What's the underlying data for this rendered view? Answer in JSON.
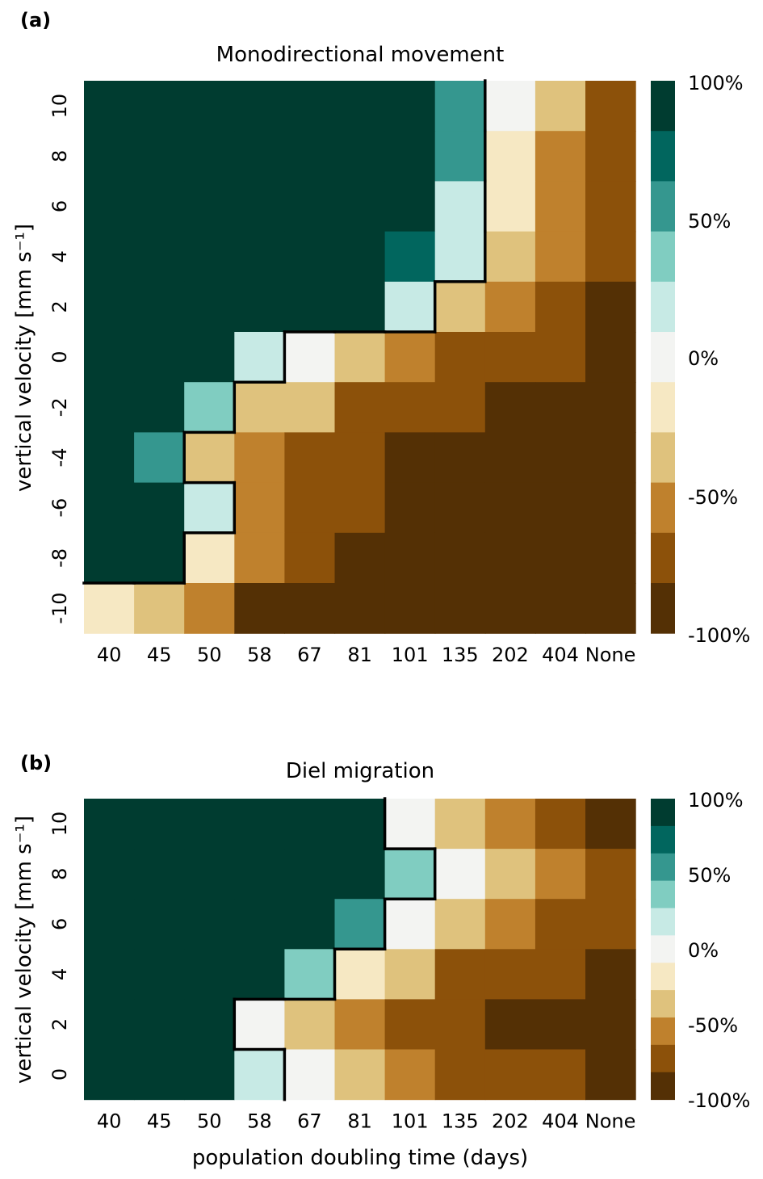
{
  "chart_data": [
    {
      "type": "heatmap",
      "panel_label": "(a)",
      "title": "Monodirectional movement",
      "xlabel": "",
      "ylabel": "vertical velocity [mm s⁻¹]",
      "x_categories": [
        "40",
        "45",
        "50",
        "58",
        "67",
        "81",
        "101",
        "135",
        "202",
        "404",
        "None"
      ],
      "y_categories": [
        "10",
        "8",
        "6",
        "4",
        "2",
        "0",
        "-2",
        "-4",
        "-6",
        "-8",
        "-10"
      ],
      "value_units": "percent change",
      "values_percent": [
        [
          100,
          100,
          100,
          100,
          100,
          100,
          100,
          50,
          0,
          -40,
          -70
        ],
        [
          100,
          100,
          100,
          100,
          100,
          100,
          100,
          50,
          -20,
          -55,
          -70
        ],
        [
          100,
          100,
          100,
          100,
          100,
          100,
          100,
          15,
          -20,
          -55,
          -70
        ],
        [
          100,
          100,
          100,
          100,
          100,
          100,
          75,
          15,
          -40,
          -55,
          -70
        ],
        [
          100,
          100,
          100,
          100,
          100,
          100,
          15,
          -40,
          -55,
          -70,
          -90
        ],
        [
          100,
          100,
          100,
          15,
          0,
          -40,
          -55,
          -70,
          -70,
          -70,
          -90
        ],
        [
          100,
          100,
          35,
          -40,
          -40,
          -70,
          -70,
          -70,
          -90,
          -90,
          -90
        ],
        [
          100,
          50,
          -40,
          -55,
          -70,
          -70,
          -90,
          -90,
          -90,
          -90,
          -90
        ],
        [
          100,
          100,
          15,
          -55,
          -70,
          -70,
          -90,
          -90,
          -90,
          -90,
          -90
        ],
        [
          100,
          100,
          -20,
          -55,
          -70,
          -90,
          -90,
          -90,
          -90,
          -90,
          -90
        ],
        [
          -20,
          -40,
          -55,
          -90,
          -90,
          -90,
          -90,
          -90,
          -90,
          -90,
          -90
        ]
      ],
      "boundary_note": "black line separates positive from non-positive change",
      "colorbar": {
        "range_percent": [
          -100,
          100
        ],
        "bins": 11,
        "tick_labels": [
          "100%",
          "50%",
          "0%",
          "-50%",
          "-100%"
        ]
      }
    },
    {
      "type": "heatmap",
      "panel_label": "(b)",
      "title": "Diel migration",
      "xlabel": "population doubling time (days)",
      "ylabel": "vertical velocity [mm s⁻¹]",
      "x_categories": [
        "40",
        "45",
        "50",
        "58",
        "67",
        "81",
        "101",
        "135",
        "202",
        "404",
        "None"
      ],
      "y_categories": [
        "10",
        "8",
        "6",
        "4",
        "2",
        "0"
      ],
      "value_units": "percent change",
      "values_percent": [
        [
          100,
          100,
          100,
          100,
          100,
          100,
          0,
          -40,
          -55,
          -70,
          -90
        ],
        [
          100,
          100,
          100,
          100,
          100,
          100,
          35,
          0,
          -40,
          -55,
          -70
        ],
        [
          100,
          100,
          100,
          100,
          100,
          50,
          0,
          -40,
          -55,
          -70,
          -70
        ],
        [
          100,
          100,
          100,
          100,
          35,
          -20,
          -40,
          -70,
          -70,
          -70,
          -90
        ],
        [
          100,
          100,
          100,
          0,
          -40,
          -55,
          -70,
          -70,
          -90,
          -90,
          -90
        ],
        [
          100,
          100,
          100,
          15,
          0,
          -40,
          -55,
          -70,
          -70,
          -70,
          -90
        ]
      ],
      "boundary_note": "black line separates positive from non-positive change",
      "colorbar": {
        "range_percent": [
          -100,
          100
        ],
        "bins": 11,
        "tick_labels": [
          "100%",
          "50%",
          "0%",
          "-50%",
          "-100%"
        ]
      }
    }
  ],
  "palette_hex": [
    "#543005",
    "#8c510a",
    "#bf812d",
    "#dfc27d",
    "#f6e8c3",
    "#f3f4f2",
    "#c7eae5",
    "#80cdc1",
    "#35978f",
    "#01665e",
    "#003c30"
  ]
}
